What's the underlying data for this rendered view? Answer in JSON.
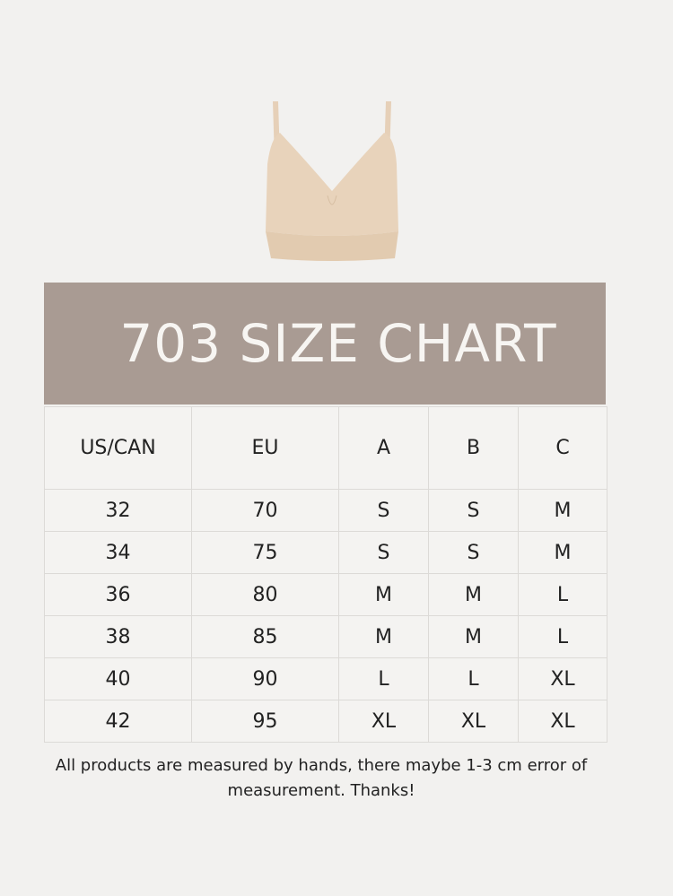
{
  "title": "703 SIZE CHART",
  "table": {
    "headers": [
      "US/CAN",
      "EU",
      "A",
      "B",
      "C"
    ],
    "rows": [
      [
        "32",
        "70",
        "S",
        "S",
        "M"
      ],
      [
        "34",
        "75",
        "S",
        "S",
        "M"
      ],
      [
        "36",
        "80",
        "M",
        "M",
        "L"
      ],
      [
        "38",
        "85",
        "M",
        "M",
        "L"
      ],
      [
        "40",
        "90",
        "L",
        "L",
        "XL"
      ],
      [
        "42",
        "95",
        "XL",
        "XL",
        "XL"
      ]
    ]
  },
  "note_line1": "All products are measured by hands, there maybe 1-3 cm error of",
  "note_line2": "measurement. Thanks!",
  "colors": {
    "banner": "#a99b93",
    "product": "#e8d2b8",
    "background": "#f2f1ef"
  }
}
